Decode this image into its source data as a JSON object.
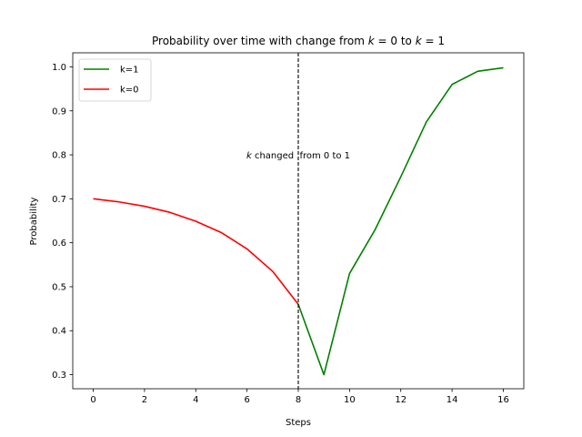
{
  "chart_data": {
    "type": "line",
    "title_parts": [
      {
        "text": "Probability over time with change from ",
        "italic": false
      },
      {
        "text": "k",
        "italic": true
      },
      {
        "text": " = 0 to ",
        "italic": false
      },
      {
        "text": "k",
        "italic": true
      },
      {
        "text": " = 1",
        "italic": false
      }
    ],
    "xlabel": "Steps",
    "ylabel": "Probability",
    "xlim": [
      -0.8,
      16.8
    ],
    "ylim": [
      0.268,
      1.032
    ],
    "xticks": [
      0,
      2,
      4,
      6,
      8,
      10,
      12,
      14,
      16
    ],
    "yticks": [
      0.3,
      0.4,
      0.5,
      0.6,
      0.7,
      0.8,
      0.9,
      1.0
    ],
    "ytick_labels": [
      "0.3",
      "0.4",
      "0.5",
      "0.6",
      "0.7",
      "0.8",
      "0.9",
      "1.0"
    ],
    "grid": false,
    "legend_position": "upper-left",
    "series": [
      {
        "name": "k=1",
        "color": "#008000",
        "x": [
          8,
          9,
          10,
          11,
          12,
          13,
          14,
          15,
          16
        ],
        "y": [
          0.46,
          0.3,
          0.53,
          0.63,
          0.75,
          0.875,
          0.96,
          0.99,
          0.998
        ]
      },
      {
        "name": "k=0",
        "color": "#ff0000",
        "x": [
          0,
          1,
          2,
          3,
          4,
          5,
          6,
          7,
          8
        ],
        "y": [
          0.7,
          0.693,
          0.683,
          0.669,
          0.649,
          0.623,
          0.586,
          0.535,
          0.46
        ]
      }
    ],
    "vline": {
      "x": 8,
      "style": "dashed",
      "color": "#000000"
    },
    "annotation": {
      "parts": [
        {
          "text": "k",
          "italic": true
        },
        {
          "text": " changed  from 0 to 1",
          "italic": false
        }
      ],
      "x": 8,
      "y": 0.8
    }
  }
}
